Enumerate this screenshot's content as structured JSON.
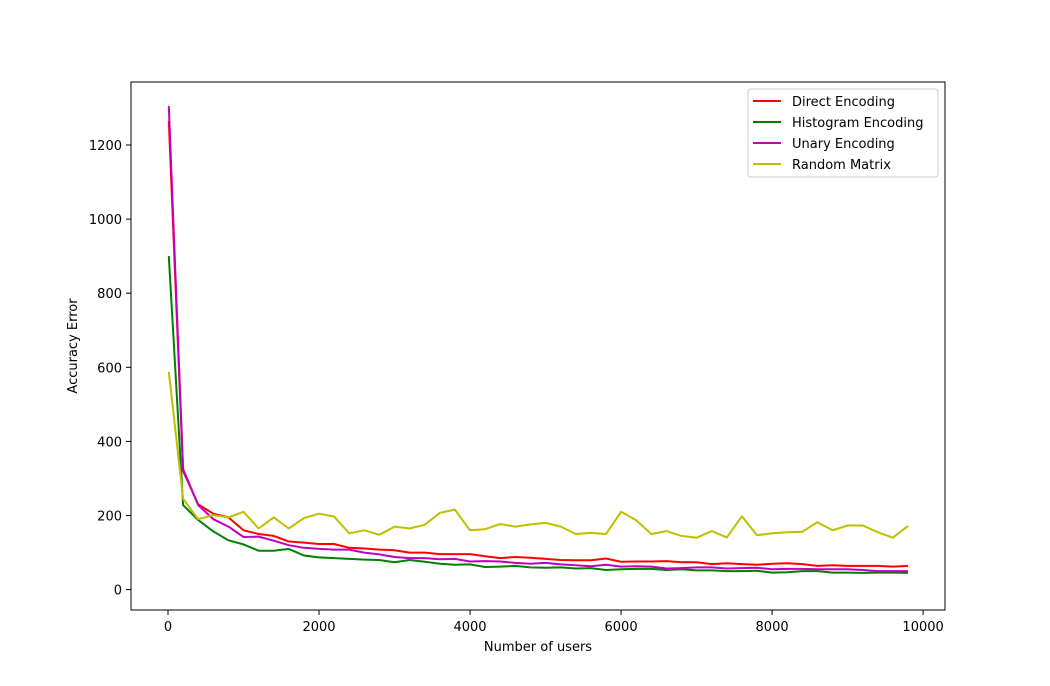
{
  "chart_data": {
    "type": "line",
    "title": "",
    "xlabel": "Number of users",
    "ylabel": "Accuracy Error",
    "xlim": [
      -490,
      10290
    ],
    "ylim": [
      -55,
      1370
    ],
    "xticks": [
      0,
      2000,
      4000,
      6000,
      8000,
      10000
    ],
    "xtick_labels": [
      "0",
      "2000",
      "4000",
      "6000",
      "8000",
      "10000"
    ],
    "yticks": [
      0,
      200,
      400,
      600,
      800,
      1000,
      1200
    ],
    "ytick_labels": [
      "0",
      "200",
      "400",
      "600",
      "800",
      "1000",
      "1200"
    ],
    "grid": false,
    "legend_position": "top-right",
    "x": [
      10,
      200,
      400,
      600,
      800,
      1000,
      1200,
      1400,
      1600,
      1800,
      2000,
      2200,
      2400,
      2600,
      2800,
      3000,
      3200,
      3400,
      3600,
      3800,
      4000,
      4200,
      4400,
      4600,
      4800,
      5000,
      5200,
      5400,
      5600,
      5800,
      6000,
      6200,
      6400,
      6600,
      6800,
      7000,
      7200,
      7400,
      7600,
      7800,
      8000,
      8200,
      8400,
      8600,
      8800,
      9000,
      9200,
      9400,
      9600,
      9800
    ],
    "series": [
      {
        "name": "Direct Encoding",
        "color": "#ff0000",
        "values": [
          1265,
          320,
          230,
          205,
          195,
          160,
          150,
          145,
          130,
          127,
          123,
          123,
          113,
          111,
          108,
          106,
          100,
          100,
          96,
          96,
          96,
          90,
          85,
          88,
          86,
          83,
          80,
          79,
          79,
          84,
          75,
          76,
          76,
          77,
          74,
          74,
          69,
          71,
          69,
          67,
          70,
          71,
          69,
          64,
          66,
          64,
          64,
          64,
          62,
          64
        ]
      },
      {
        "name": "Histogram Encoding",
        "color": "#008000",
        "values": [
          900,
          228,
          188,
          157,
          133,
          122,
          105,
          105,
          110,
          92,
          87,
          85,
          83,
          81,
          80,
          74,
          80,
          75,
          70,
          67,
          68,
          61,
          62,
          64,
          60,
          59,
          60,
          57,
          58,
          53,
          55,
          56,
          56,
          53,
          55,
          52,
          52,
          50,
          50,
          51,
          46,
          47,
          50,
          50,
          46,
          46,
          45,
          46,
          46,
          45
        ]
      },
      {
        "name": "Unary Encoding",
        "color": "#bf00bf",
        "values": [
          1305,
          325,
          228,
          190,
          170,
          142,
          143,
          132,
          120,
          113,
          110,
          108,
          108,
          100,
          95,
          88,
          85,
          85,
          82,
          83,
          76,
          77,
          76,
          72,
          70,
          72,
          68,
          66,
          63,
          67,
          62,
          63,
          62,
          57,
          58,
          60,
          60,
          57,
          58,
          59,
          55,
          56,
          56,
          55,
          55,
          55,
          53,
          50,
          50,
          50
        ]
      },
      {
        "name": "Random Matrix",
        "color": "#bfbf00",
        "values": [
          588,
          245,
          190,
          201,
          195,
          210,
          165,
          195,
          165,
          193,
          205,
          197,
          152,
          160,
          148,
          170,
          165,
          175,
          207,
          216,
          160,
          163,
          177,
          170,
          176,
          180,
          170,
          150,
          153,
          150,
          210,
          187,
          150,
          158,
          145,
          140,
          158,
          141,
          198,
          147,
          152,
          155,
          156,
          182,
          160,
          173,
          173,
          155,
          140,
          172
        ]
      }
    ]
  }
}
